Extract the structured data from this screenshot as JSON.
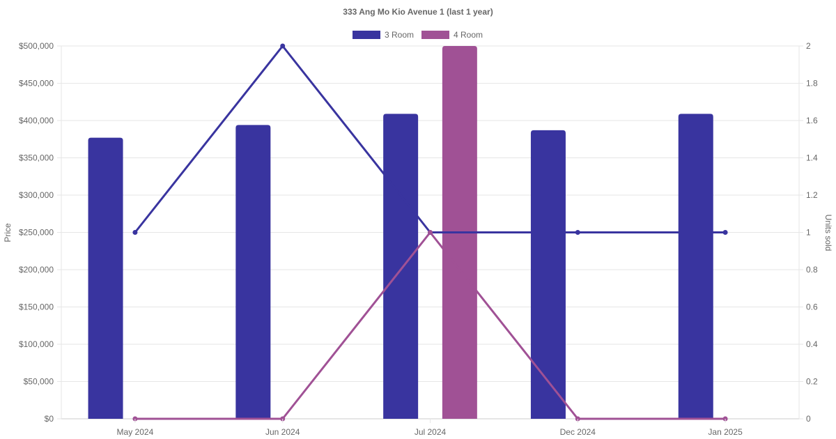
{
  "chart_data": {
    "type": "bar",
    "title": "333 Ang Mo Kio Avenue 1 (last 1 year)",
    "categories": [
      "May 2024",
      "Jun 2024",
      "Jul 2024",
      "Dec 2024",
      "Jan 2025"
    ],
    "legend": {
      "position": "top"
    },
    "grid": true,
    "y_left": {
      "label": "Price",
      "range": [
        0,
        500000
      ],
      "ticks": [
        "$0",
        "$50,000",
        "$100,000",
        "$150,000",
        "$200,000",
        "$250,000",
        "$300,000",
        "$350,000",
        "$400,000",
        "$450,000",
        "$500,000"
      ]
    },
    "y_right": {
      "label": "Units sold",
      "range": [
        0,
        2
      ],
      "ticks": [
        "0",
        "0.2",
        "0.4",
        "0.6",
        "0.8",
        "1",
        "1.2",
        "1.4",
        "1.6",
        "1.8",
        "2"
      ]
    },
    "series": [
      {
        "name": "3 Room",
        "color": "#39349f",
        "price_values": [
          377000,
          394000,
          409000,
          387000,
          409000
        ],
        "units_sold": [
          1,
          2,
          1,
          1,
          1
        ]
      },
      {
        "name": "4 Room",
        "color": "#a05195",
        "price_values": [
          null,
          null,
          500000,
          null,
          null
        ],
        "units_sold": [
          0,
          0,
          1,
          0,
          0
        ]
      }
    ]
  }
}
